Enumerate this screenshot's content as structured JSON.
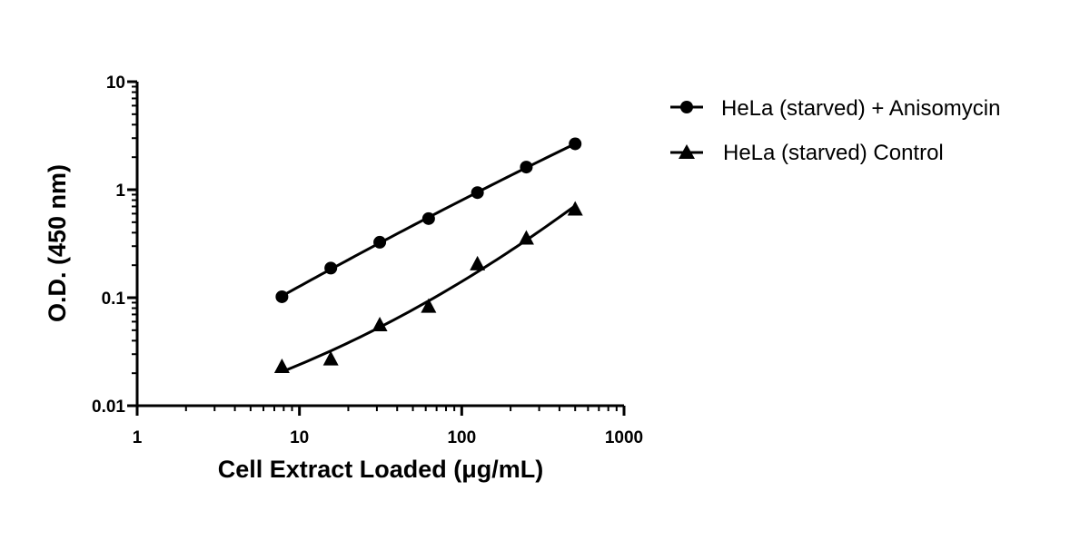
{
  "chart_data": {
    "type": "scatter",
    "xscale": "log",
    "yscale": "log",
    "xlim": [
      1,
      1000
    ],
    "ylim": [
      0.01,
      10
    ],
    "xlabel": "Cell Extract Loaded (μg/mL)",
    "ylabel": "O.D. (450 nm)",
    "xticks": [
      "1",
      "10",
      "100",
      "1000"
    ],
    "yticks": [
      "0.01",
      "0.1",
      "1",
      "10"
    ],
    "grid": false,
    "legend_position": "top-right",
    "series": [
      {
        "name": "HeLa (starved) + Anisomycin",
        "marker": "circle",
        "color": "#000000",
        "x": [
          7.8,
          15.6,
          31.25,
          62.5,
          125,
          250,
          500
        ],
        "y": [
          0.102,
          0.188,
          0.326,
          0.54,
          0.94,
          1.62,
          2.66
        ]
      },
      {
        "name": "HeLa (starved) Control",
        "marker": "triangle",
        "color": "#000000",
        "x": [
          7.8,
          15.6,
          31.25,
          62.5,
          125,
          250,
          500
        ],
        "y": [
          0.023,
          0.027,
          0.056,
          0.083,
          0.205,
          0.355,
          0.66
        ]
      }
    ]
  }
}
